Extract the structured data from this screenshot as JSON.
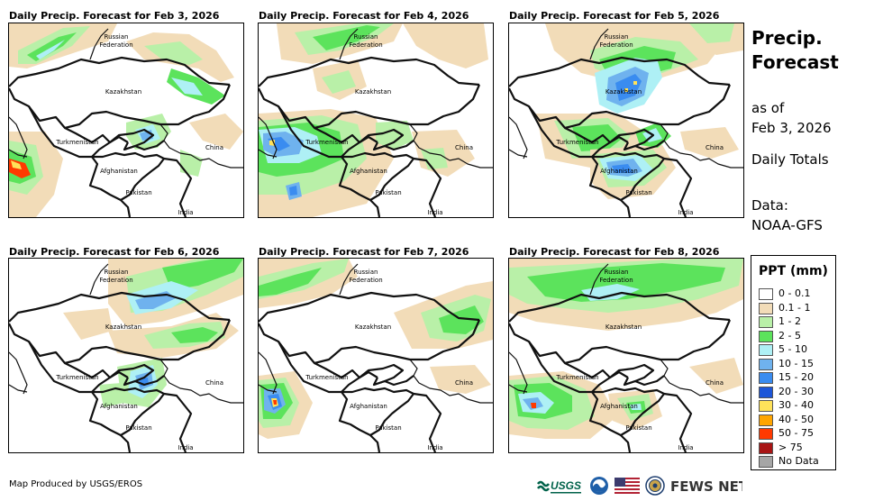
{
  "panels": [
    {
      "title": "Daily Precip. Forecast for Feb 3, 2026"
    },
    {
      "title": "Daily Precip. Forecast for Feb 4, 2026"
    },
    {
      "title": "Daily Precip. Forecast for Feb 5, 2026"
    },
    {
      "title": "Daily Precip. Forecast for Feb 6, 2026"
    },
    {
      "title": "Daily Precip. Forecast for Feb 7, 2026"
    },
    {
      "title": "Daily Precip. Forecast for Feb 8, 2026"
    }
  ],
  "map_labels": {
    "russia_1": "Russian",
    "russia_2": "Federation",
    "kazakhstan": "Kazakhstan",
    "turkmenistan": "Turkmenistan",
    "afghanistan": "Afghanistan",
    "pakistan": "Pakistan",
    "china": "China",
    "india": "India"
  },
  "side": {
    "title_line1": "Precip.",
    "title_line2": "Forecast",
    "asof_line1": "as of",
    "asof_line2": "Feb 3, 2026",
    "totals": "Daily Totals",
    "data_line1": "Data:",
    "data_line2": "NOAA-GFS"
  },
  "legend": {
    "title": "PPT (mm)",
    "items": [
      {
        "label": "0 - 0.1",
        "color": "#ffffff"
      },
      {
        "label": "0.1 - 1",
        "color": "#f2dcb8"
      },
      {
        "label": "1 - 2",
        "color": "#b9f0a8"
      },
      {
        "label": "2 - 5",
        "color": "#5ce35c"
      },
      {
        "label": "5 - 10",
        "color": "#aef0f5"
      },
      {
        "label": "10 - 15",
        "color": "#6fb2ee"
      },
      {
        "label": "15 - 20",
        "color": "#3a8cf0"
      },
      {
        "label": "20 - 30",
        "color": "#1d56d8"
      },
      {
        "label": "30 - 40",
        "color": "#ffe25a"
      },
      {
        "label": "40 - 50",
        "color": "#ffa500"
      },
      {
        "label": "50 - 75",
        "color": "#ff3a00"
      },
      {
        "label": "> 75",
        "color": "#a81414"
      },
      {
        "label": "No Data",
        "color": "#a6a6a6"
      }
    ]
  },
  "credit": "Map Produced by USGS/EROS",
  "logos": {
    "usgs": "USGS",
    "fews": "FEWS NET"
  }
}
